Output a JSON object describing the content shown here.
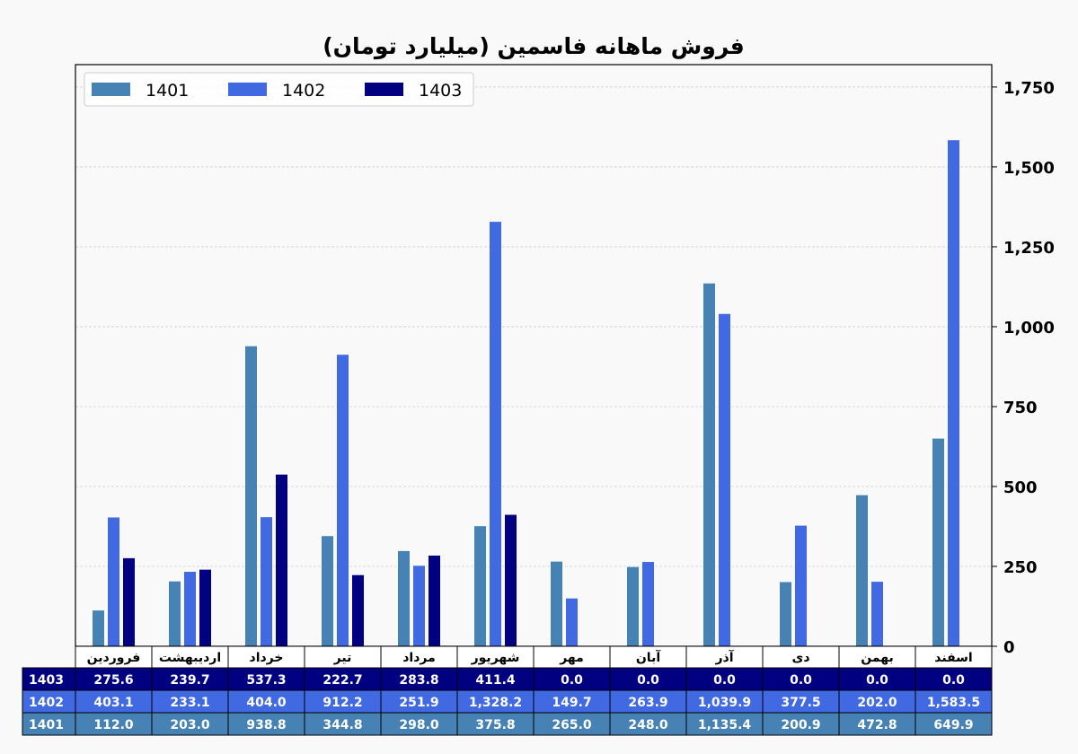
{
  "chart_data": {
    "type": "bar",
    "title": "فروش ماهانه فاسمین (میلیارد تومان)",
    "xlabel": "",
    "ylabel": "",
    "ylim": [
      0,
      1820
    ],
    "y_ticks": [
      0,
      250,
      500,
      750,
      1000,
      1250,
      1500,
      1750
    ],
    "y_tick_labels": [
      "0",
      "250",
      "500",
      "750",
      "1,000",
      "1,250",
      "1,500",
      "1,750"
    ],
    "y_axis_side": "right",
    "grid": true,
    "legend_position": "top-left",
    "categories": [
      "فروردین",
      "اردیبهشت",
      "خرداد",
      "تیر",
      "مرداد",
      "شهریور",
      "مهر",
      "آبان",
      "آذر",
      "دی",
      "بهمن",
      "اسفند"
    ],
    "series": [
      {
        "name": "1401",
        "color": "#4682b4",
        "values": [
          112.0,
          203.0,
          938.8,
          344.8,
          298.0,
          375.8,
          265.0,
          248.0,
          1135.4,
          200.9,
          472.8,
          649.9
        ]
      },
      {
        "name": "1402",
        "color": "#4169e1",
        "values": [
          403.1,
          233.1,
          404.0,
          912.2,
          251.9,
          1328.2,
          149.7,
          263.9,
          1039.9,
          377.5,
          202.0,
          1583.5
        ]
      },
      {
        "name": "1403",
        "color": "#000080",
        "values": [
          275.6,
          239.7,
          537.3,
          222.7,
          283.8,
          411.4,
          0.0,
          0.0,
          0.0,
          0.0,
          0.0,
          0.0
        ]
      }
    ],
    "table": {
      "row_order": [
        "1403",
        "1402",
        "1401"
      ],
      "rows": {
        "1403": [
          "275.6",
          "239.7",
          "537.3",
          "222.7",
          "283.8",
          "411.4",
          "0.0",
          "0.0",
          "0.0",
          "0.0",
          "0.0",
          "0.0"
        ],
        "1402": [
          "403.1",
          "233.1",
          "404.0",
          "912.2",
          "251.9",
          "1,328.2",
          "149.7",
          "263.9",
          "1,039.9",
          "377.5",
          "202.0",
          "1,583.5"
        ],
        "1401": [
          "112.0",
          "203.0",
          "938.8",
          "344.8",
          "298.0",
          "375.8",
          "265.0",
          "248.0",
          "1,135.4",
          "200.9",
          "472.8",
          "649.9"
        ]
      }
    }
  }
}
